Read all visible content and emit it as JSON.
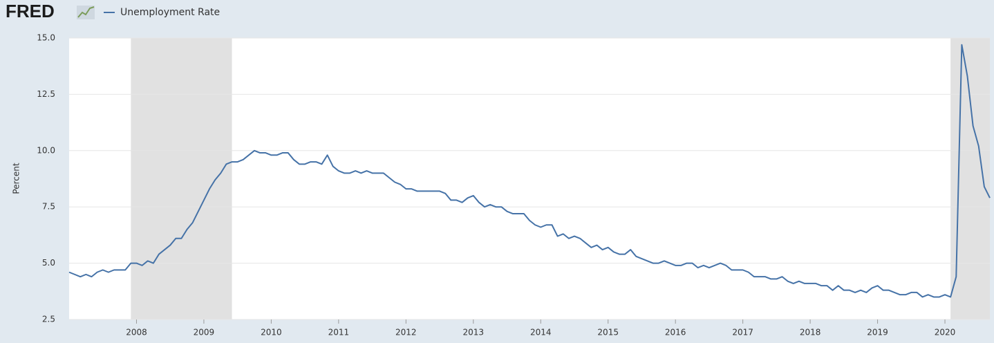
{
  "chart_data": {
    "type": "line",
    "logo": "FRED",
    "ylabel": "Percent",
    "x": [
      "2007-01",
      "2007-02",
      "2007-03",
      "2007-04",
      "2007-05",
      "2007-06",
      "2007-07",
      "2007-08",
      "2007-09",
      "2007-10",
      "2007-11",
      "2007-12",
      "2008-01",
      "2008-02",
      "2008-03",
      "2008-04",
      "2008-05",
      "2008-06",
      "2008-07",
      "2008-08",
      "2008-09",
      "2008-10",
      "2008-11",
      "2008-12",
      "2009-01",
      "2009-02",
      "2009-03",
      "2009-04",
      "2009-05",
      "2009-06",
      "2009-07",
      "2009-08",
      "2009-09",
      "2009-10",
      "2009-11",
      "2009-12",
      "2010-01",
      "2010-02",
      "2010-03",
      "2010-04",
      "2010-05",
      "2010-06",
      "2010-07",
      "2010-08",
      "2010-09",
      "2010-10",
      "2010-11",
      "2010-12",
      "2011-01",
      "2011-02",
      "2011-03",
      "2011-04",
      "2011-05",
      "2011-06",
      "2011-07",
      "2011-08",
      "2011-09",
      "2011-10",
      "2011-11",
      "2011-12",
      "2012-01",
      "2012-02",
      "2012-03",
      "2012-04",
      "2012-05",
      "2012-06",
      "2012-07",
      "2012-08",
      "2012-09",
      "2012-10",
      "2012-11",
      "2012-12",
      "2013-01",
      "2013-02",
      "2013-03",
      "2013-04",
      "2013-05",
      "2013-06",
      "2013-07",
      "2013-08",
      "2013-09",
      "2013-10",
      "2013-11",
      "2013-12",
      "2014-01",
      "2014-02",
      "2014-03",
      "2014-04",
      "2014-05",
      "2014-06",
      "2014-07",
      "2014-08",
      "2014-09",
      "2014-10",
      "2014-11",
      "2014-12",
      "2015-01",
      "2015-02",
      "2015-03",
      "2015-04",
      "2015-05",
      "2015-06",
      "2015-07",
      "2015-08",
      "2015-09",
      "2015-10",
      "2015-11",
      "2015-12",
      "2016-01",
      "2016-02",
      "2016-03",
      "2016-04",
      "2016-05",
      "2016-06",
      "2016-07",
      "2016-08",
      "2016-09",
      "2016-10",
      "2016-11",
      "2016-12",
      "2017-01",
      "2017-02",
      "2017-03",
      "2017-04",
      "2017-05",
      "2017-06",
      "2017-07",
      "2017-08",
      "2017-09",
      "2017-10",
      "2017-11",
      "2017-12",
      "2018-01",
      "2018-02",
      "2018-03",
      "2018-04",
      "2018-05",
      "2018-06",
      "2018-07",
      "2018-08",
      "2018-09",
      "2018-10",
      "2018-11",
      "2018-12",
      "2019-01",
      "2019-02",
      "2019-03",
      "2019-04",
      "2019-05",
      "2019-06",
      "2019-07",
      "2019-08",
      "2019-09",
      "2019-10",
      "2019-11",
      "2019-12",
      "2020-01",
      "2020-02",
      "2020-03",
      "2020-04",
      "2020-05",
      "2020-06",
      "2020-07",
      "2020-08",
      "2020-09"
    ],
    "series": [
      {
        "name": "Unemployment Rate",
        "color": "#4572a7",
        "values": [
          4.6,
          4.5,
          4.4,
          4.5,
          4.4,
          4.6,
          4.7,
          4.6,
          4.7,
          4.7,
          4.7,
          5.0,
          5.0,
          4.9,
          5.1,
          5.0,
          5.4,
          5.6,
          5.8,
          6.1,
          6.1,
          6.5,
          6.8,
          7.3,
          7.8,
          8.3,
          8.7,
          9.0,
          9.4,
          9.5,
          9.5,
          9.6,
          9.8,
          10.0,
          9.9,
          9.9,
          9.8,
          9.8,
          9.9,
          9.9,
          9.6,
          9.4,
          9.4,
          9.5,
          9.5,
          9.4,
          9.8,
          9.3,
          9.1,
          9.0,
          9.0,
          9.1,
          9.0,
          9.1,
          9.0,
          9.0,
          9.0,
          8.8,
          8.6,
          8.5,
          8.3,
          8.3,
          8.2,
          8.2,
          8.2,
          8.2,
          8.2,
          8.1,
          7.8,
          7.8,
          7.7,
          7.9,
          8.0,
          7.7,
          7.5,
          7.6,
          7.5,
          7.5,
          7.3,
          7.2,
          7.2,
          7.2,
          6.9,
          6.7,
          6.6,
          6.7,
          6.7,
          6.2,
          6.3,
          6.1,
          6.2,
          6.1,
          5.9,
          5.7,
          5.8,
          5.6,
          5.7,
          5.5,
          5.4,
          5.4,
          5.6,
          5.3,
          5.2,
          5.1,
          5.0,
          5.0,
          5.1,
          5.0,
          4.9,
          4.9,
          5.0,
          5.0,
          4.8,
          4.9,
          4.8,
          4.9,
          5.0,
          4.9,
          4.7,
          4.7,
          4.7,
          4.6,
          4.4,
          4.4,
          4.4,
          4.3,
          4.3,
          4.4,
          4.2,
          4.1,
          4.2,
          4.1,
          4.1,
          4.1,
          4.0,
          4.0,
          3.8,
          4.0,
          3.8,
          3.8,
          3.7,
          3.8,
          3.7,
          3.9,
          4.0,
          3.8,
          3.8,
          3.7,
          3.6,
          3.6,
          3.7,
          3.7,
          3.5,
          3.6,
          3.5,
          3.5,
          3.6,
          3.5,
          4.4,
          14.7,
          13.3,
          11.1,
          10.2,
          8.4,
          7.9
        ]
      }
    ],
    "xlim": [
      "2007-01",
      "2020-09"
    ],
    "xticks": [
      "2008",
      "2009",
      "2010",
      "2011",
      "2012",
      "2013",
      "2014",
      "2015",
      "2016",
      "2017",
      "2018",
      "2019",
      "2020"
    ],
    "ylim": [
      2.5,
      15
    ],
    "yticks": [
      {
        "value": 15,
        "label": "15.0"
      },
      12.5,
      {
        "value": 10,
        "label": "10.0"
      },
      7.5,
      {
        "value": 5,
        "label": "5.0"
      },
      2.5
    ],
    "grid": true,
    "recessions": [
      [
        "2007-12",
        "2009-06"
      ],
      [
        "2020-02",
        "2020-09"
      ]
    ],
    "recession_color": "#e1e1e1"
  }
}
